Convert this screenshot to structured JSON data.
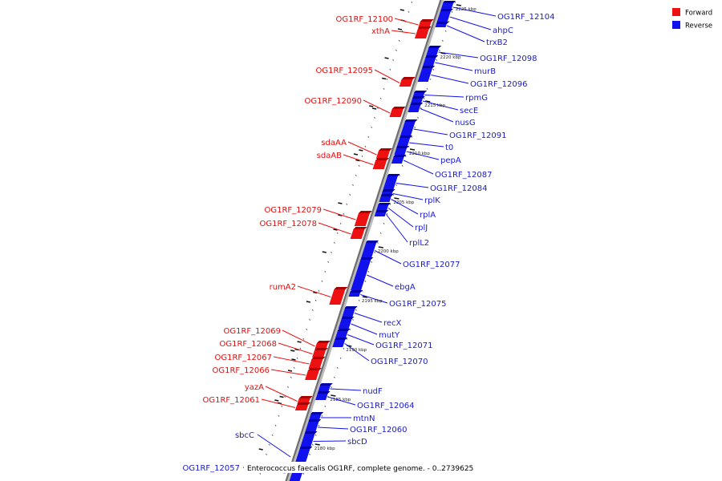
{
  "legend": [
    {
      "label": "Forward",
      "color": "#ee1111"
    },
    {
      "label": "Reverse",
      "color": "#1111ee"
    }
  ],
  "caption": "Enterococcus faecalis OG1RF, complete genome. - 0..2739625",
  "colors": {
    "forward": "#ee1111",
    "reverse": "#1111ee",
    "backbone": "#888888"
  },
  "kbp_ticks": [
    "2225 kbp",
    "2220 kbp",
    "2215 kbp",
    "2210 kbp",
    "2205 kbp",
    "2200 kbp",
    "2195 kbp",
    "2190 kbp",
    "2185 kbp",
    "2180 kbp"
  ],
  "forward_labels": [
    "OG1RF_12100",
    "xthA",
    "OG1RF_12095",
    "OG1RF_12090",
    "sdaAA",
    "sdaAB",
    "OG1RF_12079",
    "OG1RF_12078",
    "rumA2",
    "OG1RF_12069",
    "OG1RF_12068",
    "OG1RF_12067",
    "OG1RF_12066",
    "yazA",
    "OG1RF_12061"
  ],
  "reverse_labels": [
    "OG1RF_12104",
    "ahpC",
    "trxB2",
    "OG1RF_12098",
    "murB",
    "OG1RF_12096",
    "rpmG",
    "secE",
    "nusG",
    "OG1RF_12091",
    "t0",
    "pepA",
    "OG1RF_12087",
    "OG1RF_12084",
    "rplK",
    "rplA",
    "rplJ",
    "rplL2",
    "OG1RF_12077",
    "ebgA",
    "OG1RF_12075",
    "recX",
    "mutY",
    "OG1RF_12071",
    "OG1RF_12070",
    "nudF",
    "OG1RF_12064",
    "mtnN",
    "OG1RF_12060",
    "sbcD",
    "sbcC",
    "OG1RF_12057"
  ]
}
